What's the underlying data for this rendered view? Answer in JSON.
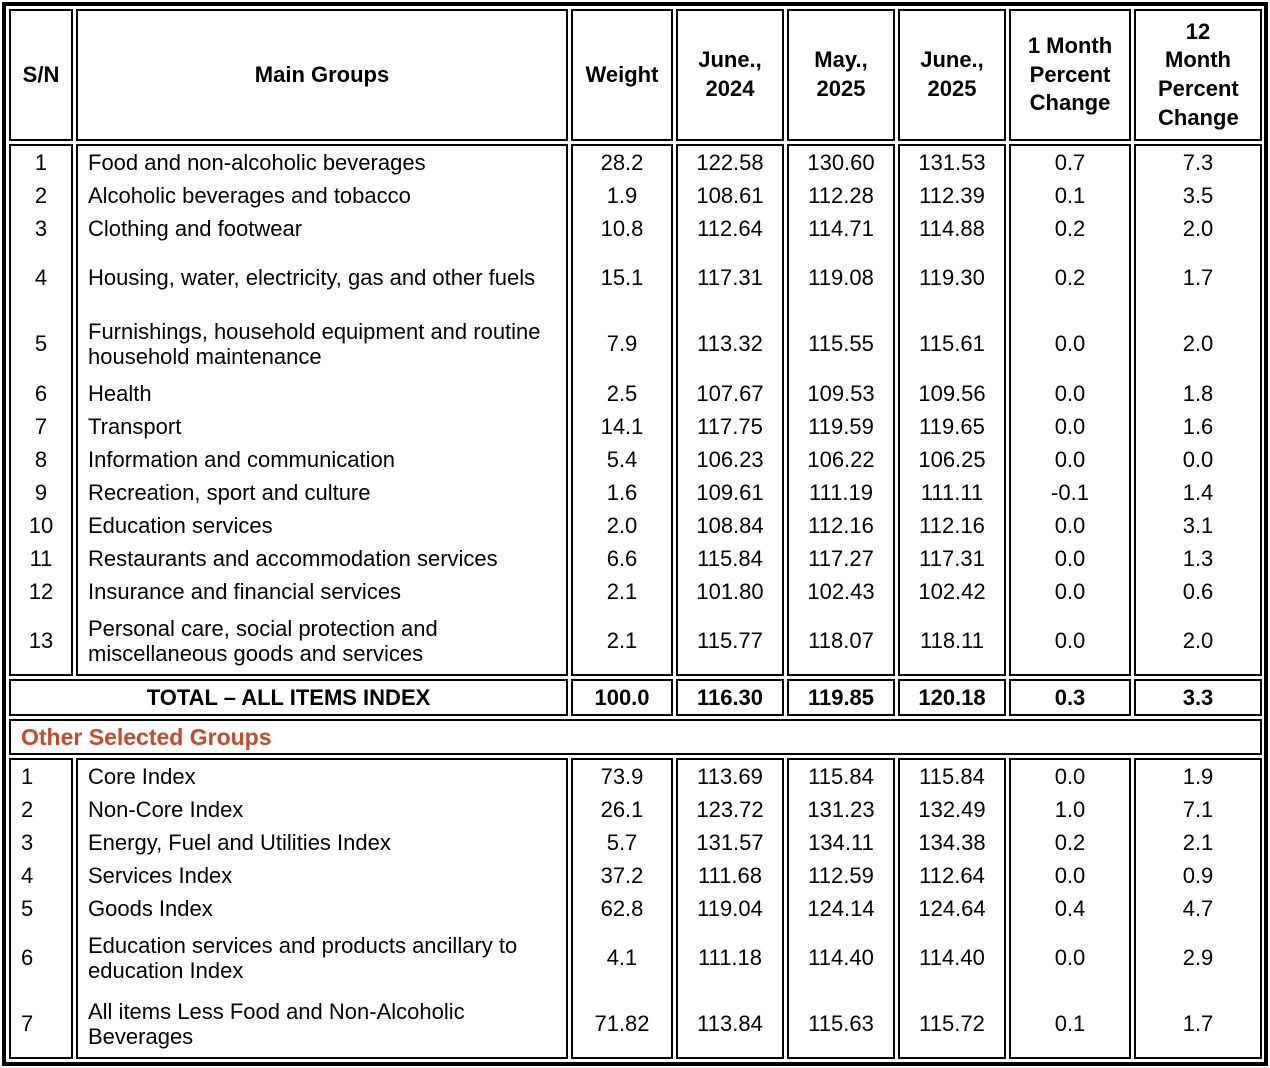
{
  "header": {
    "columns": [
      "S/N",
      "Main Groups",
      "Weight",
      "June., 2024",
      "May., 2025",
      "June., 2025",
      "1 Month Percent Change",
      "12 Month Percent Change"
    ]
  },
  "main_section": {
    "rows": [
      {
        "sn": "1",
        "group": "Food and non-alcoholic beverages",
        "weight": "28.2",
        "jun_2024": "122.58",
        "may_2025": "130.60",
        "jun_2025": "131.53",
        "pct_1m": "0.7",
        "pct_12m": "7.3",
        "tall": false
      },
      {
        "sn": "2",
        "group": "Alcoholic beverages and tobacco",
        "weight": "1.9",
        "jun_2024": "108.61",
        "may_2025": "112.28",
        "jun_2025": "112.39",
        "pct_1m": "0.1",
        "pct_12m": "3.5",
        "tall": false
      },
      {
        "sn": "3",
        "group": "Clothing and footwear",
        "weight": "10.8",
        "jun_2024": "112.64",
        "may_2025": "114.71",
        "jun_2025": "114.88",
        "pct_1m": "0.2",
        "pct_12m": "2.0",
        "tall": false
      },
      {
        "sn": "4",
        "group": "Housing, water, electricity, gas and other fuels",
        "weight": "15.1",
        "jun_2024": "117.31",
        "may_2025": "119.08",
        "jun_2025": "119.30",
        "pct_1m": "0.2",
        "pct_12m": "1.7",
        "tall": true
      },
      {
        "sn": "5",
        "group": "Furnishings, household equipment and routine household maintenance",
        "weight": "7.9",
        "jun_2024": "113.32",
        "may_2025": "115.55",
        "jun_2025": "115.61",
        "pct_1m": "0.0",
        "pct_12m": "2.0",
        "tall": true
      },
      {
        "sn": "6",
        "group": "Health",
        "weight": "2.5",
        "jun_2024": "107.67",
        "may_2025": "109.53",
        "jun_2025": "109.56",
        "pct_1m": "0.0",
        "pct_12m": "1.8",
        "tall": false
      },
      {
        "sn": "7",
        "group": "Transport",
        "weight": "14.1",
        "jun_2024": "117.75",
        "may_2025": "119.59",
        "jun_2025": "119.65",
        "pct_1m": "0.0",
        "pct_12m": "1.6",
        "tall": false
      },
      {
        "sn": "8",
        "group": "Information and communication",
        "weight": "5.4",
        "jun_2024": "106.23",
        "may_2025": "106.22",
        "jun_2025": "106.25",
        "pct_1m": "0.0",
        "pct_12m": "0.0",
        "tall": false
      },
      {
        "sn": "9",
        "group": "Recreation, sport and culture",
        "weight": "1.6",
        "jun_2024": "109.61",
        "may_2025": "111.19",
        "jun_2025": "111.11",
        "pct_1m": "-0.1",
        "pct_12m": "1.4",
        "tall": false
      },
      {
        "sn": "10",
        "group": "Education services",
        "weight": "2.0",
        "jun_2024": "108.84",
        "may_2025": "112.16",
        "jun_2025": "112.16",
        "pct_1m": "0.0",
        "pct_12m": "3.1",
        "tall": false
      },
      {
        "sn": "11",
        "group": "Restaurants and accommodation services",
        "weight": "6.6",
        "jun_2024": "115.84",
        "may_2025": "117.27",
        "jun_2025": "117.31",
        "pct_1m": "0.0",
        "pct_12m": "1.3",
        "tall": false
      },
      {
        "sn": "12",
        "group": "Insurance and financial services",
        "weight": "2.1",
        "jun_2024": "101.80",
        "may_2025": "102.43",
        "jun_2025": "102.42",
        "pct_1m": "0.0",
        "pct_12m": "0.6",
        "tall": false
      },
      {
        "sn": "13",
        "group": "Personal care, social protection and miscellaneous goods and services",
        "weight": "2.1",
        "jun_2024": "115.77",
        "may_2025": "118.07",
        "jun_2025": "118.11",
        "pct_1m": "0.0",
        "pct_12m": "2.0",
        "tall": true
      }
    ]
  },
  "total_row": {
    "label": "TOTAL – ALL ITEMS INDEX",
    "weight": "100.0",
    "jun_2024": "116.30",
    "may_2025": "119.85",
    "jun_2025": "120.18",
    "pct_1m": "0.3",
    "pct_12m": "3.3"
  },
  "other_groups": {
    "label": "Other Selected Groups",
    "rows": [
      {
        "sn": "1",
        "group": "Core Index",
        "weight": "73.9",
        "jun_2024": "113.69",
        "may_2025": "115.84",
        "jun_2025": "115.84",
        "pct_1m": "0.0",
        "pct_12m": "1.9",
        "tall": false
      },
      {
        "sn": "2",
        "group": "Non-Core Index",
        "weight": "26.1",
        "jun_2024": "123.72",
        "may_2025": "131.23",
        "jun_2025": "132.49",
        "pct_1m": "1.0",
        "pct_12m": "7.1",
        "tall": false
      },
      {
        "sn": "3",
        "group": "Energy, Fuel and Utilities Index",
        "weight": "5.7",
        "jun_2024": "131.57",
        "may_2025": "134.11",
        "jun_2025": "134.38",
        "pct_1m": "0.2",
        "pct_12m": "2.1",
        "tall": false
      },
      {
        "sn": "4",
        "group": "Services Index",
        "weight": "37.2",
        "jun_2024": "111.68",
        "may_2025": "112.59",
        "jun_2025": "112.64",
        "pct_1m": "0.0",
        "pct_12m": "0.9",
        "tall": false
      },
      {
        "sn": "5",
        "group": "Goods Index",
        "weight": "62.8",
        "jun_2024": "119.04",
        "may_2025": "124.14",
        "jun_2025": "124.64",
        "pct_1m": "0.4",
        "pct_12m": "4.7",
        "tall": false
      },
      {
        "sn": "6",
        "group": "Education services and products ancillary to education Index",
        "weight": "4.1",
        "jun_2024": "111.18",
        "may_2025": "114.40",
        "jun_2025": "114.40",
        "pct_1m": "0.0",
        "pct_12m": "2.9",
        "tall": true
      },
      {
        "sn": "7",
        "group": "All items Less Food and Non-Alcoholic Beverages",
        "weight": "71.82",
        "jun_2024": "113.84",
        "may_2025": "115.63",
        "jun_2025": "115.72",
        "pct_1m": "0.1",
        "pct_12m": "1.7",
        "tall": true
      }
    ]
  },
  "colors": {
    "accent": "#C5492B",
    "border": "#000000",
    "background": "#FFFFFF",
    "text": "#000000"
  }
}
